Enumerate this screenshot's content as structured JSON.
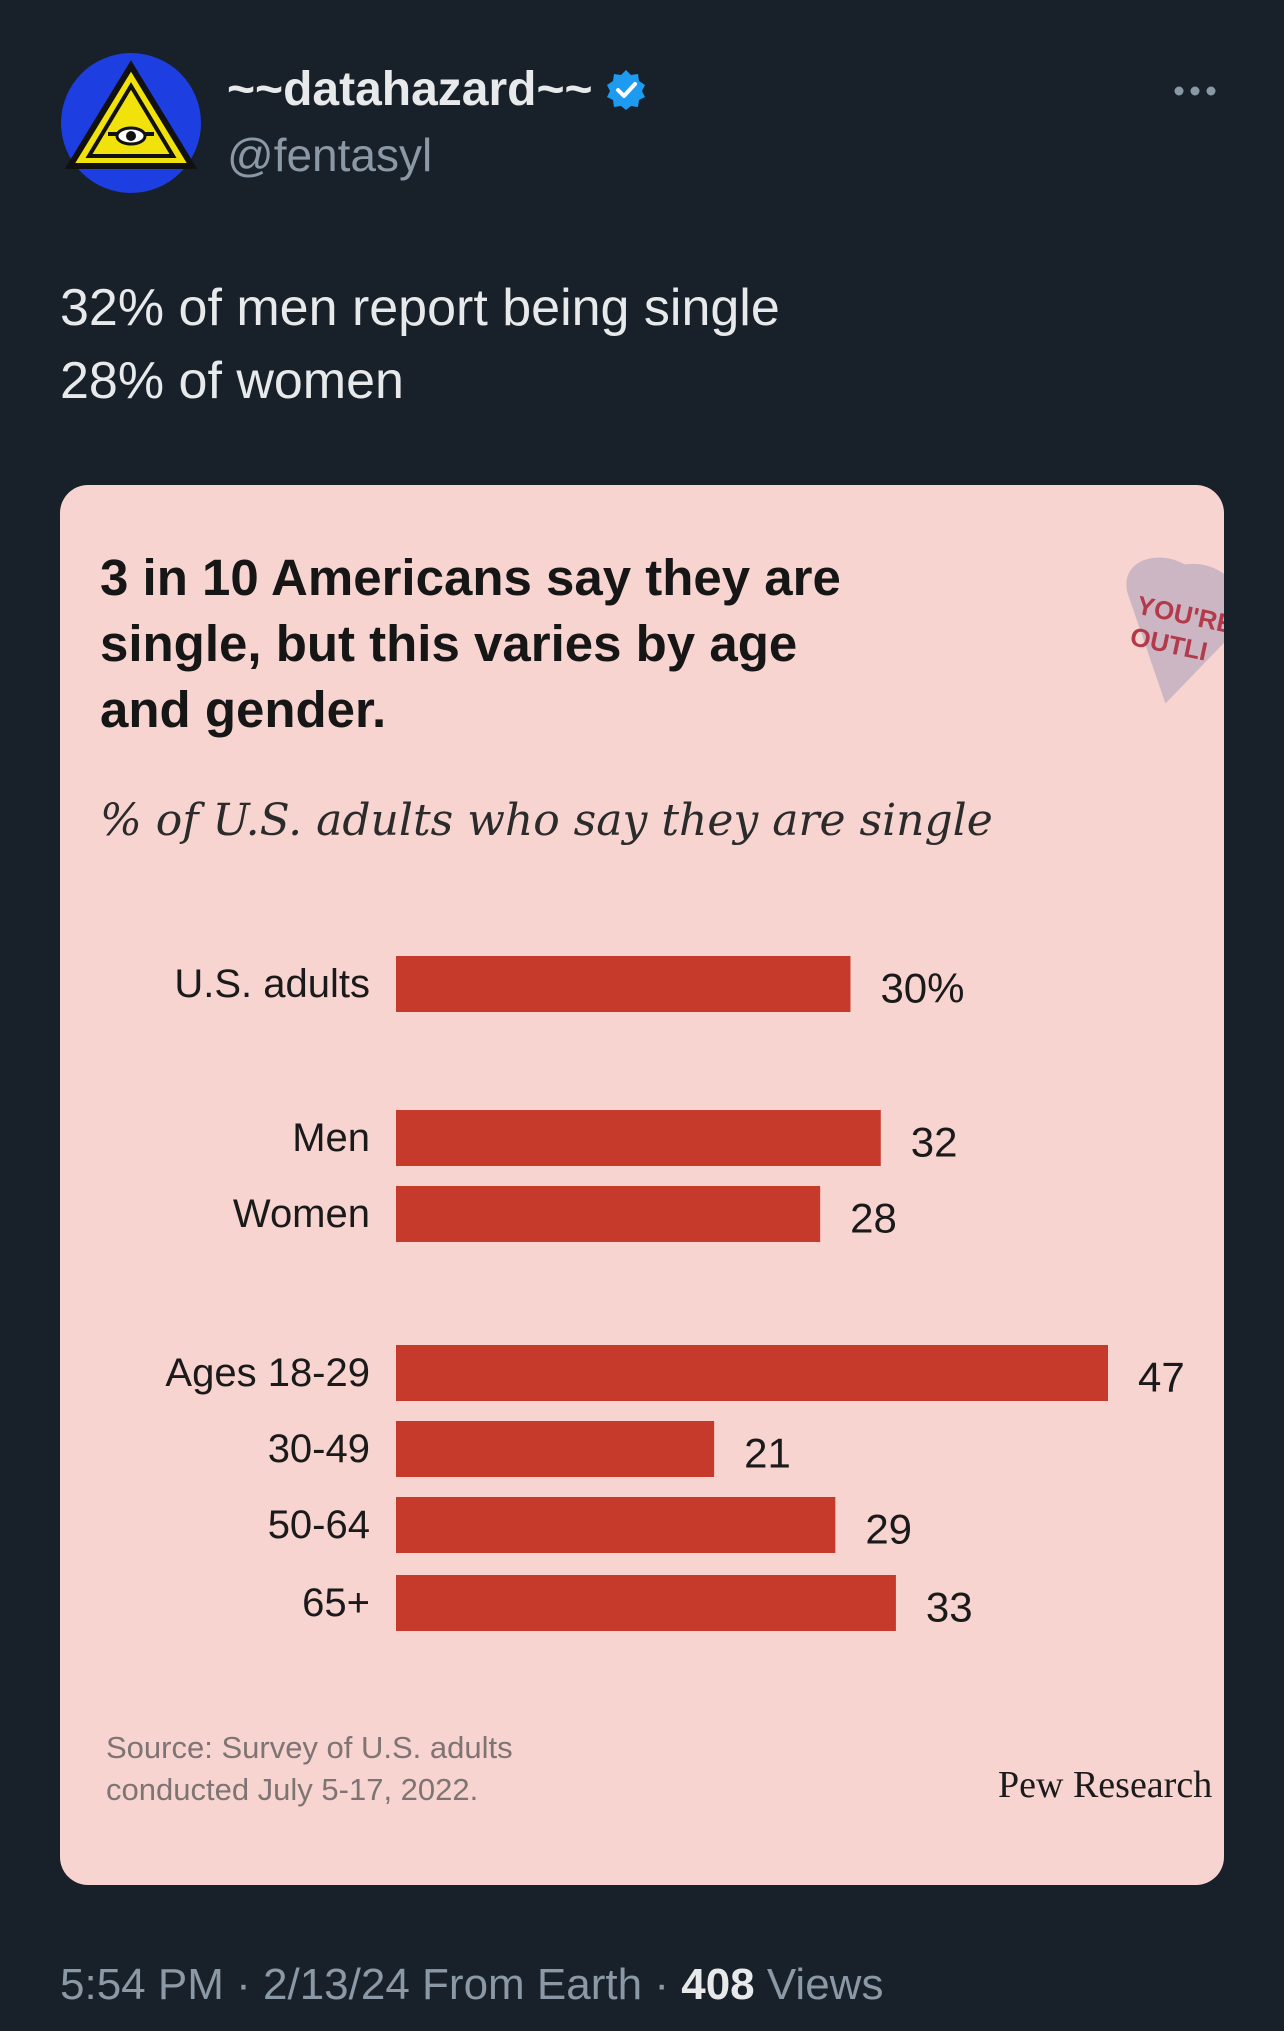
{
  "tweet": {
    "display_name": "~~datahazard~~",
    "handle": "@fentasyl",
    "avatar_icon": "hazard-triangle-eye-icon",
    "verified_icon": "verified-badge-icon",
    "more_icon": "more-dots-icon",
    "text_lines": [
      "32% of men report being single",
      "28% of women"
    ],
    "time": "5:54 PM",
    "date": "2/13/24",
    "source": "From Earth",
    "views_count": "408",
    "views_label": "Views",
    "separator": "·"
  },
  "media": {
    "background_color": "#f7d4d0",
    "bar_color": "#c53a2b",
    "heart_text_line1": "YOU'RE",
    "heart_text_line2": "OUTLI",
    "source_line1": "Source: Survey of U.S. adults",
    "source_line2": "conducted July 5-17, 2022.",
    "credit": "Pew Research"
  },
  "chart_data": {
    "type": "bar",
    "orientation": "horizontal",
    "title": "3 in 10 Americans say they are single, but this varies by age and gender.",
    "title_lines": [
      "3 in 10 Americans say they are",
      "single, but this varies by age",
      "and gender."
    ],
    "subtitle": "% of U.S. adults who say they are single",
    "categories": [
      "U.S. adults",
      "Men",
      "Women",
      "Ages 18-29",
      "30-49",
      "50-64",
      "65+"
    ],
    "values": [
      30,
      32,
      28,
      47,
      21,
      29,
      33
    ],
    "data_labels": [
      "30%",
      "32",
      "28",
      "47",
      "21",
      "29",
      "33"
    ],
    "groups": [
      [
        0
      ],
      [
        1,
        2
      ],
      [
        3,
        4,
        5,
        6
      ]
    ],
    "xlim": [
      0,
      47
    ],
    "grid": false,
    "legend": "none"
  }
}
